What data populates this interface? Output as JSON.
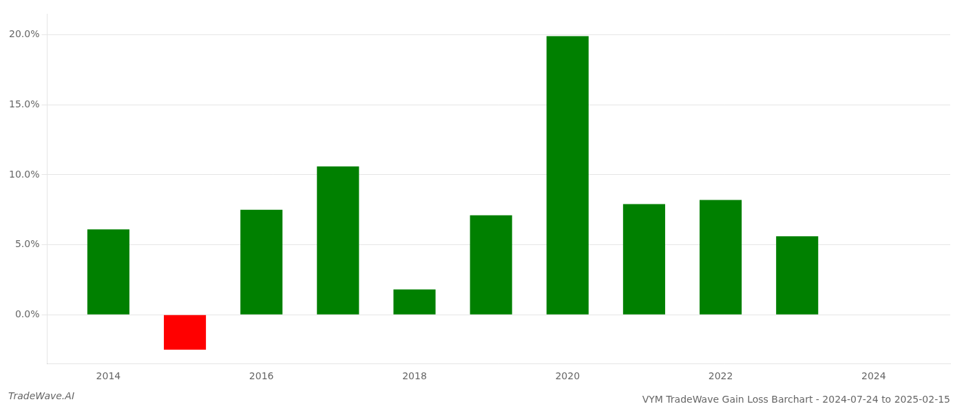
{
  "chart_data": {
    "type": "bar",
    "title": "VYM TradeWave Gain Loss Barchart - 2024-07-24 to 2025-02-15",
    "annotations": [
      "TradeWave.AI"
    ],
    "x": [
      2014,
      2015,
      2016,
      2017,
      2018,
      2019,
      2020,
      2021,
      2022,
      2023
    ],
    "values": [
      6.1,
      -2.5,
      7.5,
      10.6,
      1.8,
      7.1,
      19.9,
      7.9,
      8.2,
      5.6
    ],
    "colors": [
      "#008000",
      "#ff0000",
      "#008000",
      "#008000",
      "#008000",
      "#008000",
      "#008000",
      "#008000",
      "#008000",
      "#008000"
    ],
    "xlim": [
      2013.2,
      2025.0
    ],
    "xticks": [
      2014,
      2016,
      2018,
      2020,
      2022,
      2024
    ],
    "ylim": [
      -3.5,
      21.5
    ],
    "yticks": [
      {
        "value": 0.0,
        "label": "0.0%"
      },
      {
        "value": 5.0,
        "label": "5.0%"
      },
      {
        "value": 10.0,
        "label": "10.0%"
      },
      {
        "value": 15.0,
        "label": "15.0%"
      },
      {
        "value": 20.0,
        "label": "20.0%"
      }
    ],
    "grid": "y"
  }
}
